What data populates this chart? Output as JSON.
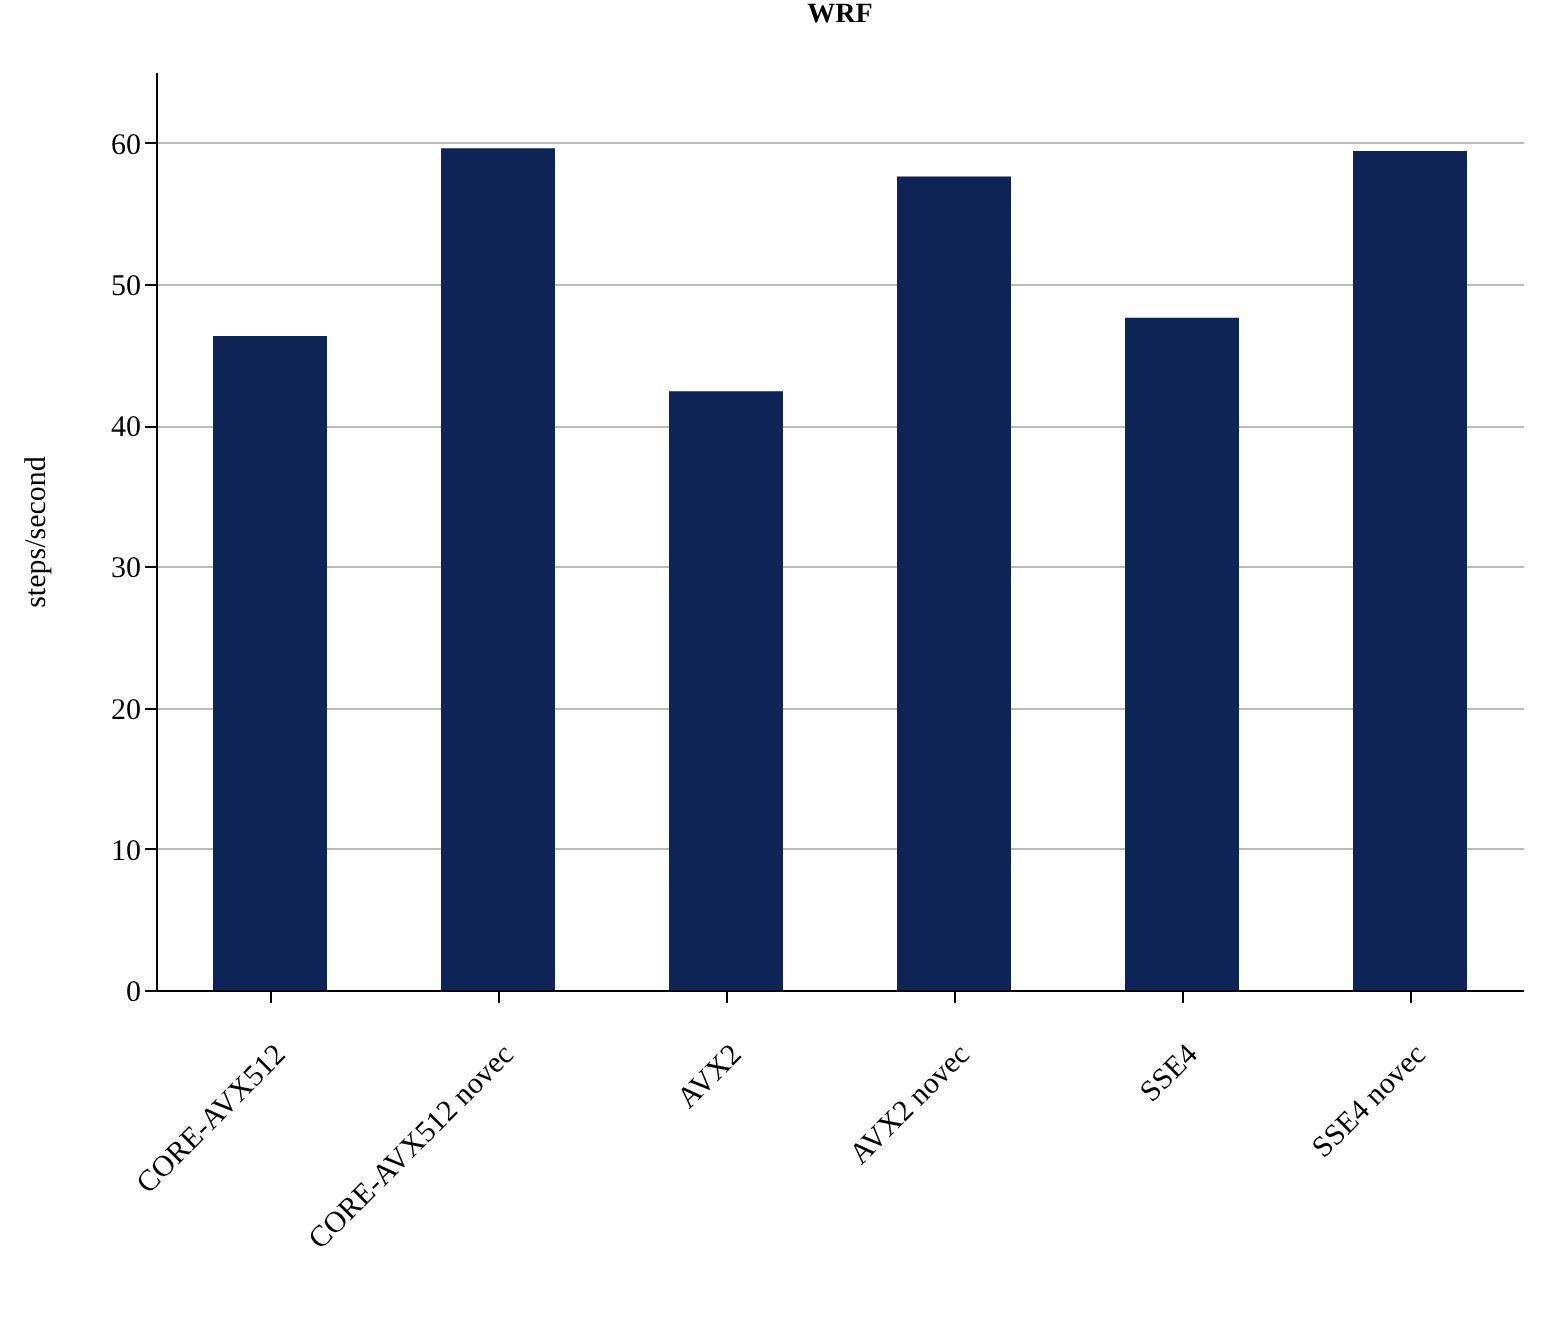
{
  "chart_data": {
    "type": "bar",
    "title": "WRF",
    "ylabel": "steps/second",
    "categories": [
      "CORE-AVX512",
      "CORE-AVX512 novec",
      "AVX2",
      "AVX2 novec",
      "SSE4",
      "SSE4 novec"
    ],
    "values": [
      46.3,
      59.6,
      42.4,
      57.6,
      47.6,
      59.4
    ],
    "color": "#0e2356",
    "ylim": [
      0,
      65
    ],
    "yticks": [
      0,
      10,
      20,
      30,
      40,
      50,
      60
    ],
    "grid": "y"
  }
}
